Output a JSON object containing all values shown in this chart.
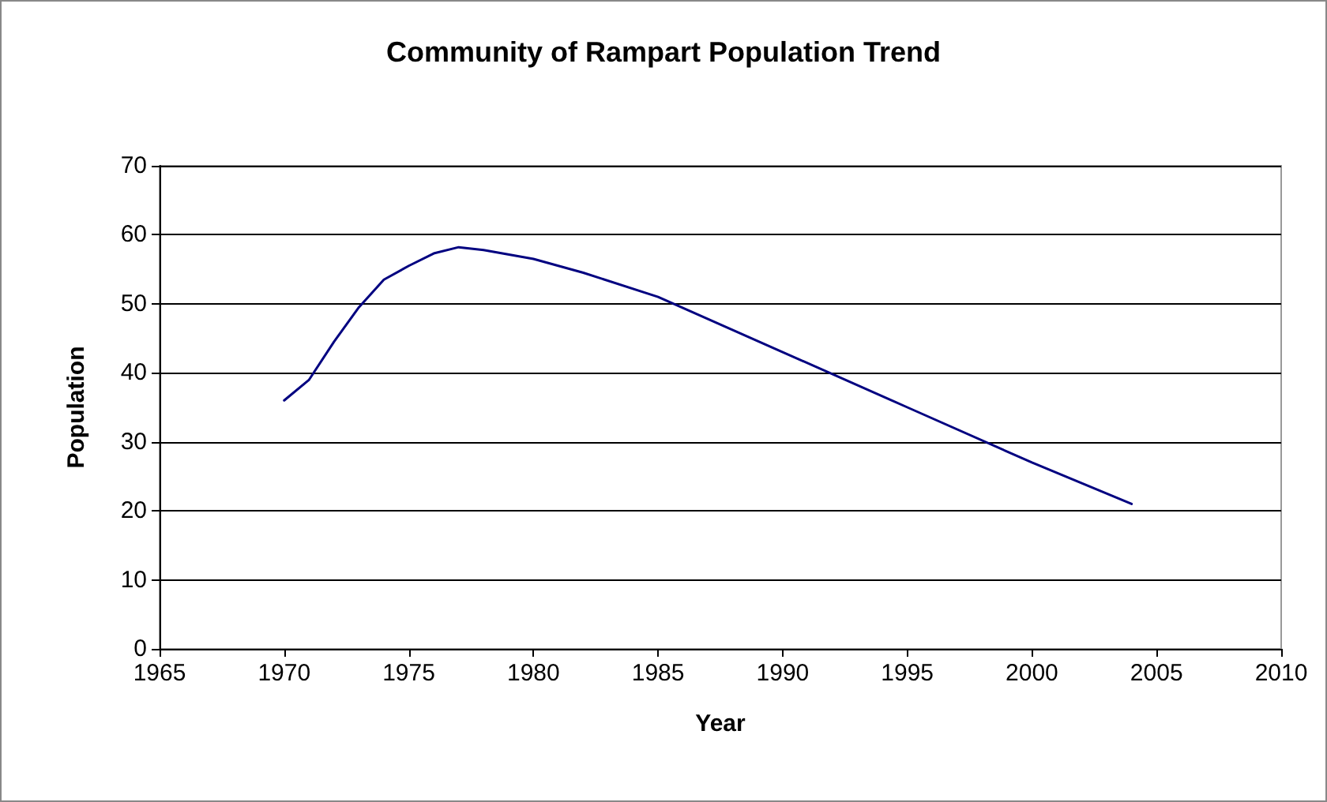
{
  "chart_data": {
    "type": "line",
    "title": "Community of Rampart Population Trend",
    "xlabel": "Year",
    "ylabel": "Population",
    "series": [
      {
        "color": "#000080",
        "x": [
          1970,
          1971,
          1972,
          1973,
          1974,
          1975,
          1976,
          1977,
          1978,
          1980,
          1982,
          1985,
          1990,
          1995,
          2000,
          2004
        ],
        "values": [
          36,
          39,
          44.5,
          49.5,
          53.5,
          55.5,
          57.3,
          58.2,
          57.8,
          56.5,
          54.5,
          51,
          43,
          35,
          27,
          21
        ]
      }
    ],
    "xlim": [
      1965,
      2010
    ],
    "xticks": [
      1965,
      1970,
      1975,
      1980,
      1985,
      1990,
      1995,
      2000,
      2005,
      2010
    ],
    "ylim": [
      0,
      70
    ],
    "yticks": [
      0,
      10,
      20,
      30,
      40,
      50,
      60,
      70
    ],
    "grid": "y",
    "marker": "none",
    "line_style": "solid"
  }
}
